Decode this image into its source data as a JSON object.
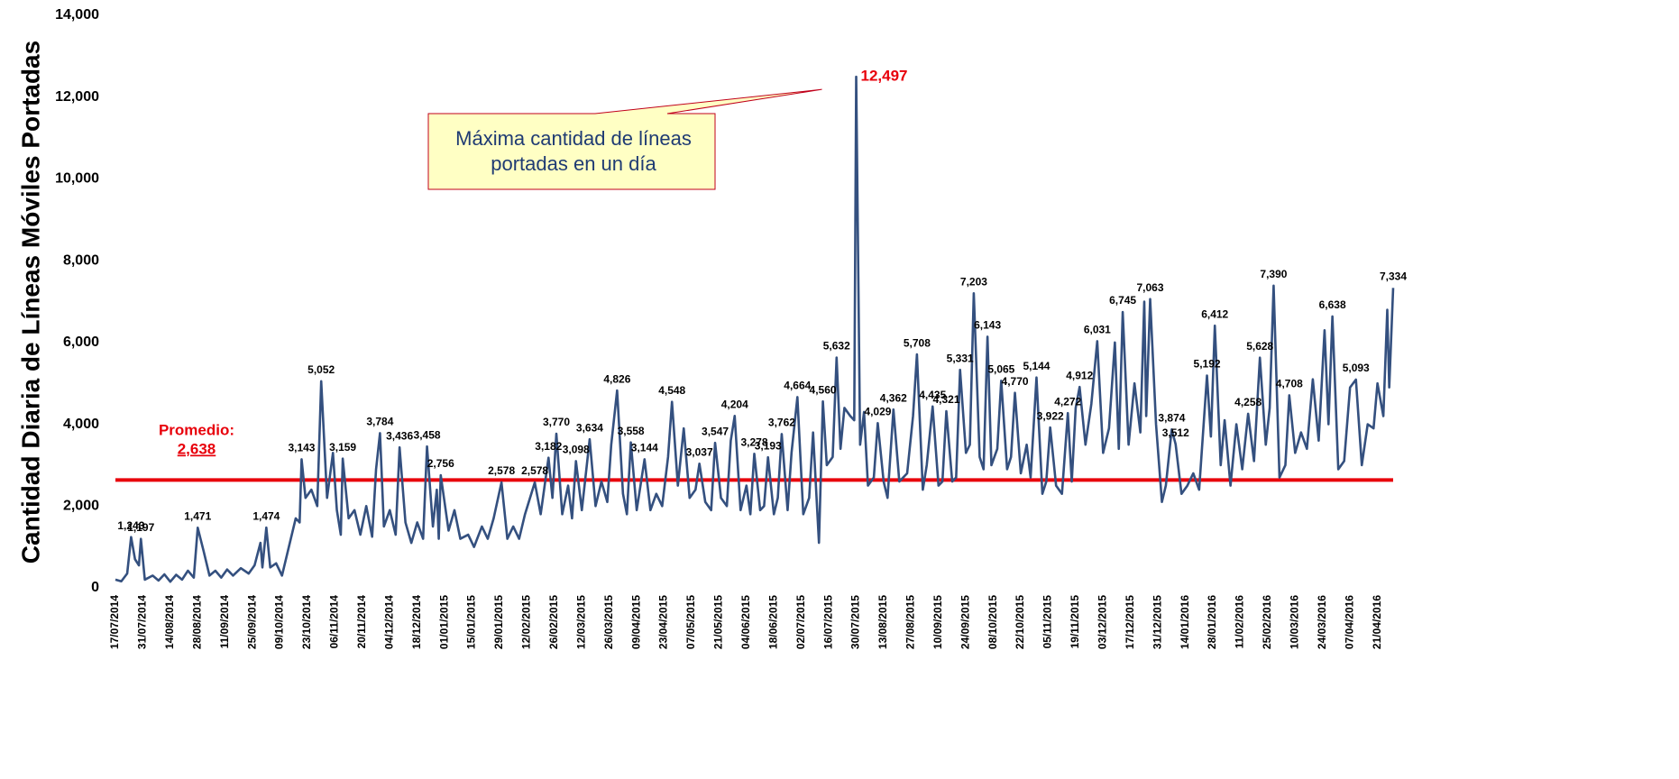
{
  "chart_data": {
    "type": "line",
    "y_label": "Cantidad Diaria de Líneas Móviles Portadas",
    "ylim": [
      0,
      14000
    ],
    "yticks": [
      0,
      {
        "value": 2000,
        "label": "2,000"
      },
      {
        "value": 4000,
        "label": "4,000"
      },
      {
        "value": 6000,
        "label": "6,000"
      },
      {
        "value": 8000,
        "label": "8,000"
      },
      {
        "value": 10000,
        "label": "10,000"
      },
      {
        "value": 12000,
        "label": "12,000"
      },
      {
        "value": 14000,
        "label": "14,000"
      }
    ],
    "xlim": [
      "17/07/2014",
      "29/04/2016"
    ],
    "xticks": [
      "17/07/2014",
      "31/07/2014",
      "14/08/2014",
      "28/08/2014",
      "11/09/2014",
      "25/09/2014",
      "09/10/2014",
      "23/10/2014",
      "06/11/2014",
      "20/11/2014",
      "04/12/2014",
      "18/12/2014",
      "01/01/2015",
      "15/01/2015",
      "29/01/2015",
      "12/02/2015",
      "26/02/2015",
      "12/03/2015",
      "26/03/2015",
      "09/04/2015",
      "23/04/2015",
      "07/05/2015",
      "21/05/2015",
      "04/06/2015",
      "18/06/2015",
      "02/07/2015",
      "16/07/2015",
      "30/07/2015",
      "13/08/2015",
      "27/08/2015",
      "10/09/2015",
      "24/09/2015",
      "08/10/2015",
      "22/10/2015",
      "05/11/2015",
      "19/11/2015",
      "03/12/2015",
      "17/12/2015",
      "31/12/2015",
      "14/01/2016",
      "28/01/2016",
      "11/02/2016",
      "25/02/2016",
      "10/03/2016",
      "24/03/2016",
      "07/04/2016",
      "21/04/2016"
    ],
    "x": [
      "17/07/2014",
      "20/07/2014",
      "23/07/2014",
      "25/07/2014",
      "27/07/2014",
      "29/07/2014",
      "30/07/2014",
      "01/08/2014",
      "05/08/2014",
      "08/08/2014",
      "11/08/2014",
      "14/08/2014",
      "17/08/2014",
      "20/08/2014",
      "23/08/2014",
      "26/08/2014",
      "28/08/2014",
      "31/08/2014",
      "03/09/2014",
      "06/09/2014",
      "09/09/2014",
      "12/09/2014",
      "15/09/2014",
      "19/09/2014",
      "23/09/2014",
      "26/09/2014",
      "29/09/2014",
      "30/09/2014",
      "02/10/2014",
      "04/10/2014",
      "07/10/2014",
      "10/10/2014",
      "13/10/2014",
      "17/10/2014",
      "19/10/2014",
      "20/10/2014",
      "22/10/2014",
      "25/10/2014",
      "28/10/2014",
      "30/10/2014",
      "02/11/2014",
      "05/11/2014",
      "07/11/2014",
      "09/11/2014",
      "10/11/2014",
      "13/11/2014",
      "16/11/2014",
      "19/11/2014",
      "22/11/2014",
      "25/11/2014",
      "27/11/2014",
      "29/11/2014",
      "01/12/2014",
      "04/12/2014",
      "07/12/2014",
      "09/12/2014",
      "12/12/2014",
      "15/12/2014",
      "18/12/2014",
      "21/12/2014",
      "23/12/2014",
      "26/12/2014",
      "28/12/2014",
      "29/12/2014",
      "30/12/2014",
      "03/01/2015",
      "06/01/2015",
      "09/01/2015",
      "13/01/2015",
      "16/01/2015",
      "20/01/2015",
      "23/01/2015",
      "26/01/2015",
      "30/01/2015",
      "02/02/2015",
      "05/02/2015",
      "08/02/2015",
      "11/02/2015",
      "16/02/2015",
      "19/02/2015",
      "23/02/2015",
      "25/02/2015",
      "27/02/2015",
      "02/03/2015",
      "05/03/2015",
      "07/03/2015",
      "09/03/2015",
      "12/03/2015",
      "16/03/2015",
      "19/03/2015",
      "22/03/2015",
      "25/03/2015",
      "27/03/2015",
      "30/03/2015",
      "02/04/2015",
      "04/04/2015",
      "06/04/2015",
      "09/04/2015",
      "13/04/2015",
      "16/04/2015",
      "19/04/2015",
      "22/04/2015",
      "25/04/2015",
      "27/04/2015",
      "30/04/2015",
      "03/05/2015",
      "06/05/2015",
      "09/05/2015",
      "11/05/2015",
      "14/05/2015",
      "17/05/2015",
      "19/05/2015",
      "22/05/2015",
      "25/05/2015",
      "27/05/2015",
      "29/05/2015",
      "01/06/2015",
      "04/06/2015",
      "06/06/2015",
      "08/06/2015",
      "11/06/2015",
      "13/06/2015",
      "15/06/2015",
      "18/06/2015",
      "20/06/2015",
      "22/06/2015",
      "25/06/2015",
      "27/06/2015",
      "30/06/2015",
      "03/07/2015",
      "06/07/2015",
      "08/07/2015",
      "11/07/2015",
      "13/07/2015",
      "15/07/2015",
      "18/07/2015",
      "20/07/2015",
      "22/07/2015",
      "24/07/2015",
      "27/07/2015",
      "29/07/2015",
      "30/07/2015",
      "01/08/2015",
      "03/08/2015",
      "05/08/2015",
      "08/08/2015",
      "10/08/2015",
      "13/08/2015",
      "15/08/2015",
      "18/08/2015",
      "21/08/2015",
      "25/08/2015",
      "28/08/2015",
      "30/08/2015",
      "02/09/2015",
      "04/09/2015",
      "07/09/2015",
      "10/09/2015",
      "12/09/2015",
      "14/09/2015",
      "17/09/2015",
      "19/09/2015",
      "21/09/2015",
      "24/09/2015",
      "26/09/2015",
      "28/09/2015",
      "01/10/2015",
      "03/10/2015",
      "05/10/2015",
      "07/10/2015",
      "10/10/2015",
      "12/10/2015",
      "15/10/2015",
      "17/10/2015",
      "19/10/2015",
      "22/10/2015",
      "25/10/2015",
      "27/10/2015",
      "30/10/2015",
      "02/11/2015",
      "04/11/2015",
      "06/11/2015",
      "09/11/2015",
      "12/11/2015",
      "15/11/2015",
      "17/11/2015",
      "19/11/2015",
      "21/11/2015",
      "24/11/2015",
      "27/11/2015",
      "30/11/2015",
      "03/12/2015",
      "06/12/2015",
      "09/12/2015",
      "11/12/2015",
      "13/12/2015",
      "16/12/2015",
      "19/12/2015",
      "22/12/2015",
      "24/12/2015",
      "25/12/2015",
      "27/12/2015",
      "30/12/2015",
      "02/01/2016",
      "04/01/2016",
      "07/01/2016",
      "09/01/2016",
      "12/01/2016",
      "15/01/2016",
      "18/01/2016",
      "21/01/2016",
      "25/01/2016",
      "27/01/2016",
      "29/01/2016",
      "01/02/2016",
      "03/02/2016",
      "06/02/2016",
      "09/02/2016",
      "12/02/2016",
      "15/02/2016",
      "18/02/2016",
      "21/02/2016",
      "24/02/2016",
      "26/02/2016",
      "28/02/2016",
      "02/03/2016",
      "05/03/2016",
      "07/03/2016",
      "10/03/2016",
      "13/03/2016",
      "16/03/2016",
      "19/03/2016",
      "22/03/2016",
      "25/03/2016",
      "27/03/2016",
      "29/03/2016",
      "01/04/2016",
      "04/04/2016",
      "07/04/2016",
      "10/04/2016",
      "13/04/2016",
      "16/04/2016",
      "19/04/2016",
      "21/04/2016",
      "24/04/2016",
      "26/04/2016",
      "27/04/2016",
      "29/04/2016"
    ],
    "series": [
      {
        "name": "Líneas portadas",
        "color": "#34507f",
        "values": [
          200,
          160,
          350,
          1243,
          700,
          550,
          1197,
          200,
          300,
          180,
          330,
          150,
          320,
          200,
          420,
          250,
          1471,
          900,
          300,
          420,
          250,
          450,
          300,
          480,
          350,
          550,
          1100,
          500,
          1474,
          500,
          600,
          300,
          900,
          1700,
          1600,
          3143,
          2200,
          2400,
          2000,
          5052,
          2200,
          3300,
          1900,
          1300,
          3159,
          1700,
          1900,
          1300,
          2000,
          1250,
          2900,
          3784,
          1500,
          1900,
          1300,
          3436,
          1600,
          1100,
          1600,
          1200,
          3458,
          1500,
          2400,
          1200,
          2756,
          1400,
          1900,
          1200,
          1300,
          1000,
          1500,
          1200,
          1700,
          2578,
          1200,
          1500,
          1200,
          1800,
          2578,
          1800,
          3182,
          2200,
          3770,
          1800,
          2500,
          1700,
          3098,
          1900,
          3634,
          2000,
          2600,
          2100,
          3500,
          4826,
          2300,
          1800,
          3558,
          1900,
          3144,
          1900,
          2300,
          2000,
          3200,
          4548,
          2500,
          3900,
          2200,
          2400,
          3037,
          2100,
          1900,
          3547,
          2200,
          2000,
          3600,
          4204,
          1900,
          2500,
          1800,
          3278,
          1900,
          2000,
          3193,
          1800,
          2200,
          3762,
          1900,
          3300,
          4664,
          1800,
          2200,
          3800,
          1100,
          4560,
          3000,
          3200,
          5632,
          3400,
          4400,
          4200,
          4100,
          12497,
          3500,
          4300,
          2500,
          2700,
          4029,
          2600,
          2200,
          4362,
          2600,
          2800,
          4200,
          5708,
          2400,
          3000,
          4435,
          2500,
          2600,
          4321,
          2600,
          2700,
          5331,
          3300,
          3500,
          7203,
          3200,
          2900,
          6143,
          3000,
          3400,
          5065,
          2900,
          3200,
          4770,
          2800,
          3500,
          2700,
          5144,
          2300,
          2600,
          3922,
          2500,
          2300,
          4272,
          2600,
          4400,
          4912,
          3500,
          4500,
          6031,
          3300,
          3900,
          6000,
          3400,
          6745,
          3500,
          5000,
          3800,
          7000,
          4200,
          7063,
          4000,
          2100,
          2500,
          3874,
          3512,
          2300,
          2500,
          2800,
          2400,
          5192,
          3700,
          6412,
          3000,
          4100,
          2500,
          4000,
          2900,
          4258,
          3100,
          5628,
          3500,
          4400,
          7390,
          2700,
          3000,
          4708,
          3300,
          3800,
          3400,
          5100,
          3600,
          6300,
          4000,
          6638,
          2900,
          3100,
          4900,
          5093,
          3000,
          4000,
          3900,
          5000,
          4200,
          6800,
          4900,
          7334
        ],
        "value_labels": [
          null,
          null,
          null,
          "1,243",
          null,
          null,
          "1,197",
          null,
          null,
          null,
          null,
          null,
          null,
          null,
          null,
          null,
          "1,471",
          null,
          null,
          null,
          null,
          null,
          null,
          null,
          null,
          null,
          null,
          null,
          "1,474",
          null,
          null,
          null,
          null,
          null,
          null,
          "3,143",
          null,
          null,
          null,
          "5,052",
          null,
          null,
          null,
          null,
          "3,159",
          null,
          null,
          null,
          null,
          null,
          null,
          "3,784",
          null,
          null,
          null,
          "3,436",
          null,
          null,
          null,
          null,
          "3,458",
          null,
          null,
          null,
          "2,756",
          null,
          null,
          null,
          null,
          null,
          null,
          null,
          null,
          "2,578",
          null,
          null,
          null,
          null,
          "2,578",
          null,
          "3,182",
          null,
          "3,770",
          null,
          null,
          null,
          "3,098",
          null,
          "3,634",
          null,
          null,
          null,
          null,
          "4,826",
          null,
          null,
          "3,558",
          null,
          "3,144",
          null,
          null,
          null,
          null,
          "4,548",
          null,
          null,
          null,
          null,
          "3,037",
          null,
          null,
          "3,547",
          null,
          null,
          null,
          "4,204",
          null,
          null,
          null,
          "3,278",
          null,
          null,
          "3,193",
          null,
          null,
          "3,762",
          null,
          null,
          "4,664",
          null,
          null,
          null,
          null,
          "4,560",
          null,
          null,
          "5,632",
          null,
          null,
          null,
          null,
          "12,497",
          null,
          null,
          null,
          null,
          "4,029",
          null,
          null,
          "4,362",
          null,
          null,
          null,
          "5,708",
          null,
          null,
          "4,435",
          null,
          null,
          "4,321",
          null,
          null,
          "5,331",
          null,
          null,
          "7,203",
          null,
          null,
          "6,143",
          null,
          null,
          "5,065",
          null,
          null,
          "4,770",
          null,
          null,
          null,
          "5,144",
          null,
          null,
          "3,922",
          null,
          null,
          "4,272",
          null,
          null,
          "4,912",
          null,
          null,
          "6,031",
          null,
          null,
          null,
          null,
          "6,745",
          null,
          null,
          null,
          null,
          null,
          "7,063",
          null,
          null,
          null,
          "3,874",
          "3,512",
          null,
          null,
          null,
          null,
          "5,192",
          null,
          "6,412",
          null,
          null,
          null,
          null,
          null,
          "4,258",
          null,
          "5,628",
          null,
          null,
          "7,390",
          null,
          null,
          "4,708",
          null,
          null,
          null,
          null,
          null,
          null,
          null,
          "6,638",
          null,
          null,
          null,
          "5,093",
          null,
          null,
          null,
          null,
          null,
          null,
          null,
          "7,334"
        ]
      }
    ],
    "average": {
      "value": 2638,
      "label": "Promedio:",
      "value_label": "2,638",
      "color": "#e8000b"
    },
    "annotation": {
      "lines": [
        "Máxima cantidad de líneas",
        "portadas en un día"
      ],
      "target_x": "30/07/2015",
      "target_value": 12497
    }
  }
}
